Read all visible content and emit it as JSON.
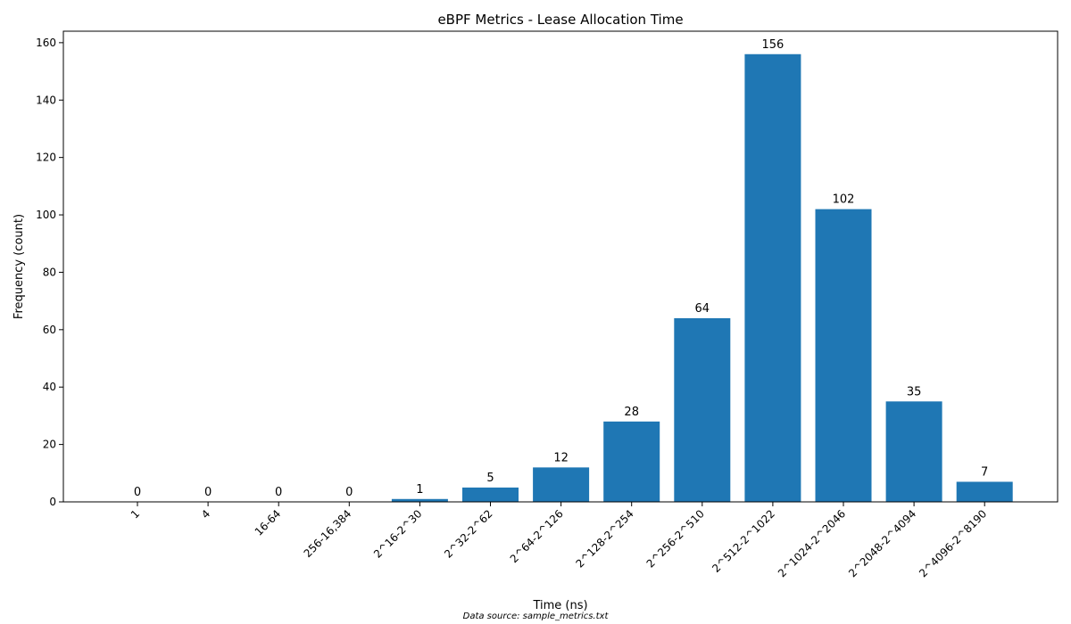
{
  "chart_data": {
    "type": "bar",
    "title": "eBPF Metrics - Lease Allocation Time",
    "xlabel": "Time (ns)",
    "ylabel": "Frequency (count)",
    "categories": [
      "1",
      "4",
      "16-64",
      "256-16,384",
      "2^16-2^30",
      "2^32-2^62",
      "2^64-2^126",
      "2^128-2^254",
      "2^256-2^510",
      "2^512-2^1022",
      "2^1024-2^2046",
      "2^2048-2^4094",
      "2^4096-2^8190"
    ],
    "values": [
      0,
      0,
      0,
      0,
      1,
      5,
      12,
      28,
      64,
      156,
      102,
      35,
      7
    ],
    "value_labels": [
      "0",
      "0",
      "0",
      "0",
      "1",
      "5",
      "12",
      "28",
      "64",
      "156",
      "102",
      "35",
      "7"
    ],
    "ylim": [
      0,
      164
    ],
    "yticks": [
      0,
      20,
      40,
      60,
      80,
      100,
      120,
      140,
      160
    ],
    "ytick_labels": [
      "0",
      "20",
      "40",
      "60",
      "80",
      "100",
      "120",
      "140",
      "160"
    ],
    "bar_color": "#1f77b4",
    "grid": false,
    "legend": "none",
    "footnote": "Data source: sample_metrics.txt"
  }
}
